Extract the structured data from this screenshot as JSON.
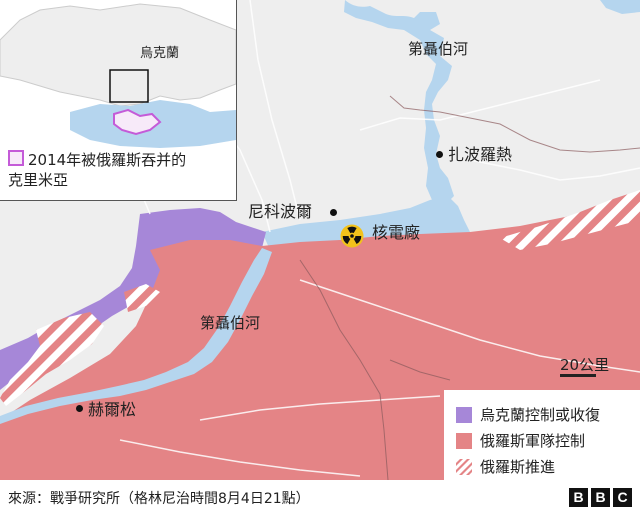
{
  "colors": {
    "ukraine_control": "#a687d8",
    "russian_control": "#e48486",
    "russian_advance": "#e48486",
    "water": "#b5d5ee",
    "land": "#eeeeee",
    "crimea_outline": "#c45bd8"
  },
  "labels": {
    "river_north": "第聶伯河",
    "river_south": "第聶伯河",
    "zaporizhzhia": "扎波羅熱",
    "nikopol": "尼科波爾",
    "nuclear_plant": "核電廠",
    "kherson": "赫爾松"
  },
  "inset": {
    "country": "烏克蘭",
    "legend_text_line1": "2014年被俄羅斯吞并的",
    "legend_text_line2": "克里米亞"
  },
  "scale": {
    "label": "20公里"
  },
  "legend": {
    "items": [
      {
        "label": "烏克蘭控制或收復",
        "swatch": "ukraine_control"
      },
      {
        "label": "俄羅斯軍隊控制",
        "swatch": "russian_control"
      },
      {
        "label": "俄羅斯推進",
        "swatch": "russian_advance"
      }
    ]
  },
  "footer": {
    "source": "來源：戰爭研究所（格林尼治時間8月4日21點）",
    "logo_letters": [
      "B",
      "B",
      "C"
    ]
  },
  "icons": {
    "nuclear": "radiation-trefoil-icon"
  }
}
